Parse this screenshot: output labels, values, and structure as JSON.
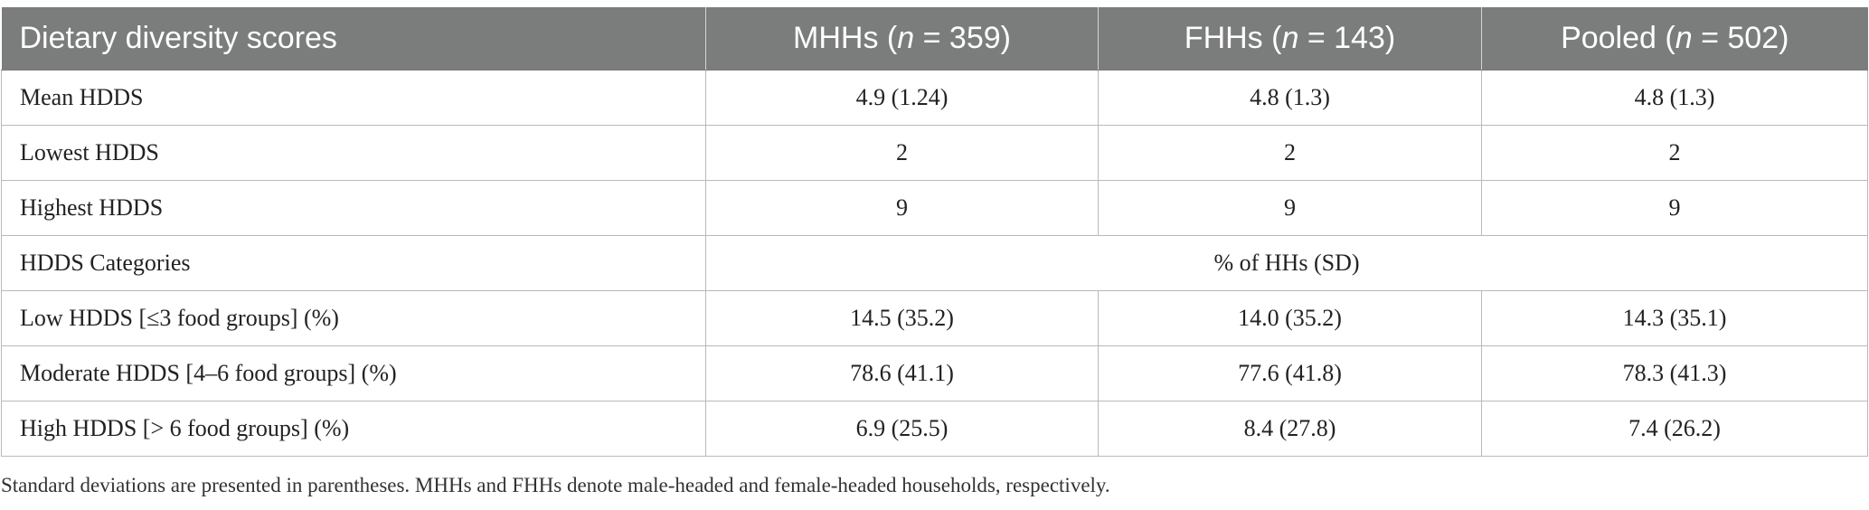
{
  "table": {
    "headers": {
      "col1": "Dietary diversity scores",
      "col2_prefix": "MHHs (",
      "col2_n": "n",
      "col2_suffix": " = 359)",
      "col3_prefix": "FHHs (",
      "col3_n": "n",
      "col3_suffix": " = 143)",
      "col4_prefix": "Pooled (",
      "col4_n": "n",
      "col4_suffix": " = 502)"
    },
    "rows": [
      {
        "label": "Mean HDDS",
        "mhh": "4.9 (1.24)",
        "fhh": "4.8 (1.3)",
        "pooled": "4.8 (1.3)"
      },
      {
        "label": "Lowest HDDS",
        "mhh": "2",
        "fhh": "2",
        "pooled": "2"
      },
      {
        "label": "Highest HDDS",
        "mhh": "9",
        "fhh": "9",
        "pooled": "9"
      }
    ],
    "category_row": {
      "label": "HDDS Categories",
      "span_text": "% of HHs (SD)"
    },
    "category_rows": [
      {
        "label": "Low HDDS [≤3 food groups] (%)",
        "mhh": "14.5 (35.2)",
        "fhh": "14.0 (35.2)",
        "pooled": "14.3 (35.1)"
      },
      {
        "label": "Moderate HDDS [4–6 food groups] (%)",
        "mhh": "78.6 (41.1)",
        "fhh": "77.6 (41.8)",
        "pooled": "78.3 (41.3)"
      },
      {
        "label": "High HDDS [> 6 food groups] (%)",
        "mhh": "6.9 (25.5)",
        "fhh": "8.4 (27.8)",
        "pooled": "7.4 (26.2)"
      }
    ]
  },
  "footnote": "Standard deviations are presented in parentheses. MHHs and FHHs denote male-headed and female-headed households, respectively.",
  "colors": {
    "header_bg": "#7b7c7c",
    "header_text": "#ffffff",
    "border": "#b9b9b9"
  }
}
